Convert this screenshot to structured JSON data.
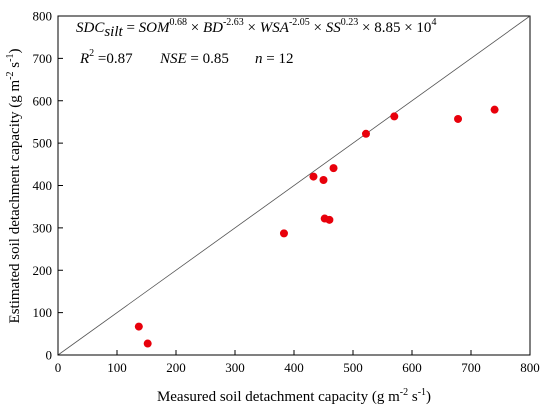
{
  "chart_data": {
    "type": "scatter",
    "title": "",
    "xlabel": "Measured soil detachment capacity (g m^-2 s^-1)",
    "ylabel": "Estimated soil detachment capacity (g m^-2 s^-1)",
    "xlim": [
      0,
      800
    ],
    "ylim": [
      0,
      800
    ],
    "x_ticks": [
      "0",
      "100",
      "200",
      "300",
      "400",
      "500",
      "600",
      "700",
      "800"
    ],
    "y_ticks": [
      "0",
      "100",
      "200",
      "300",
      "400",
      "500",
      "600",
      "700",
      "800"
    ],
    "grid": false,
    "reference_line": "1:1",
    "point_color": "#e8000b",
    "line_color": "#555555",
    "points": [
      {
        "x": 137,
        "y": 67
      },
      {
        "x": 152,
        "y": 27
      },
      {
        "x": 383,
        "y": 287
      },
      {
        "x": 433,
        "y": 421
      },
      {
        "x": 450,
        "y": 413
      },
      {
        "x": 452,
        "y": 322
      },
      {
        "x": 460,
        "y": 319
      },
      {
        "x": 467,
        "y": 441
      },
      {
        "x": 522,
        "y": 522
      },
      {
        "x": 570,
        "y": 563
      },
      {
        "x": 678,
        "y": 557
      },
      {
        "x": 740,
        "y": 579
      }
    ],
    "annotations": {
      "equation": {
        "lhs": "SDC",
        "lhs_sub": "silt",
        "eq": " = ",
        "t1": "SOM",
        "t1_exp": "0.68",
        "t2": "BD",
        "t2_exp": "-2.63",
        "t3": "WSA",
        "t3_exp": "-2.05",
        "t4": "SS",
        "t4_exp": "0.23",
        "mult": " × ",
        "const": "8.85 × 10",
        "const_exp": "4"
      },
      "stats": {
        "r2_label": "R",
        "r2_exp": "2",
        "r2_value": " =0.87",
        "nse_label": "NSE",
        "nse_value": " = 0.85",
        "n_label": "n",
        "n_value": " = 12"
      }
    }
  },
  "axis_titles": {
    "x_main": "Measured soil detachment capacity (g m",
    "x_exp1": "-2",
    "x_mid": " s",
    "x_exp2": "-1",
    "x_end": ")",
    "y_main": "Estimated soil detachment capacity (g m",
    "y_exp1": "-2",
    "y_mid": " s",
    "y_exp2": "-1",
    "y_end": ")"
  }
}
